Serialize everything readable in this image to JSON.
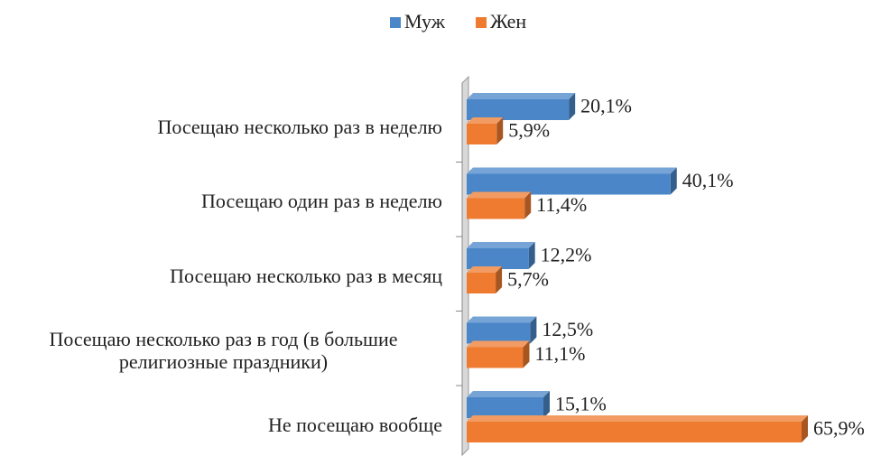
{
  "chart_data": {
    "type": "bar3d_horizontal",
    "categories": [
      "Посещаю несколько раз в неделю",
      "Посещаю один раз в неделю",
      "Посещаю несколько раз в месяц",
      "Посещаю несколько раз в год (в большие религиозные праздники)",
      "Не посещаю вообще"
    ],
    "series": [
      {
        "name": "Муж",
        "color": "#4a86c8",
        "values": [
          20.1,
          40.1,
          12.2,
          12.5,
          15.1
        ],
        "value_labels": [
          "20,1%",
          "40,1%",
          "12,2%",
          "12,5%",
          "15,1%"
        ]
      },
      {
        "name": "Жен",
        "color": "#ee7b30",
        "values": [
          5.9,
          11.4,
          5.7,
          11.1,
          65.9
        ],
        "value_labels": [
          "5,9%",
          "11,4%",
          "5,7%",
          "11,1%",
          "65,9%"
        ]
      }
    ],
    "legend": "top"
  }
}
